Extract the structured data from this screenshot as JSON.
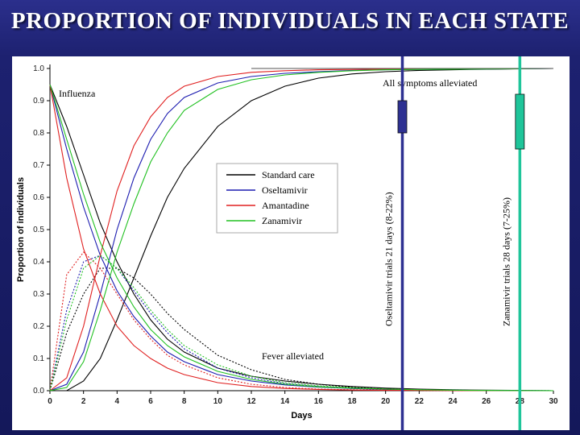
{
  "slide": {
    "title": "PROPORTION OF INDIVIDUALS IN EACH STATE"
  },
  "chart_data": {
    "type": "line",
    "xlabel": "Days",
    "ylabel": "Proportion of individuals",
    "xlim": [
      0,
      30
    ],
    "ylim": [
      0,
      1.0
    ],
    "x_ticks": [
      0,
      2,
      4,
      6,
      8,
      10,
      12,
      14,
      16,
      18,
      20,
      22,
      24,
      26,
      28,
      30
    ],
    "y_ticks": [
      0.0,
      0.1,
      0.2,
      0.3,
      0.4,
      0.5,
      0.6,
      0.7,
      0.8,
      0.9,
      1.0
    ],
    "grid": false,
    "legend_position": "center-right",
    "annotations": {
      "influenza": "Influenza",
      "all_symptoms": "All symptoms alleviated",
      "fever": "Fever alleviated",
      "oseltamivir_trial": "Oseltamivir trials 21 days (8-22%)",
      "zanamivir_trial": "Zanamivir trials 28 days (7-25%)"
    },
    "trial_markers": [
      {
        "name": "Oseltamivir trials",
        "x": 21,
        "box_y": [
          0.8,
          0.9
        ],
        "color": "#2e3192"
      },
      {
        "name": "Zanamivir trials",
        "x": 28,
        "box_y": [
          0.75,
          0.92
        ],
        "color": "#1fc59a"
      }
    ],
    "series": [
      {
        "name": "Standard care",
        "color": "#000000",
        "x": [
          0,
          1,
          2,
          3,
          4,
          5,
          6,
          7,
          8,
          10,
          12,
          14,
          16,
          18,
          20,
          22,
          25,
          30
        ],
        "all_alleviated": [
          0,
          0.0,
          0.03,
          0.1,
          0.22,
          0.35,
          0.48,
          0.6,
          0.69,
          0.82,
          0.9,
          0.945,
          0.97,
          0.983,
          0.99,
          0.994,
          0.997,
          1.0
        ],
        "fever_free_influenza": [
          0.95,
          0.82,
          0.67,
          0.52,
          0.4,
          0.3,
          0.22,
          0.16,
          0.12,
          0.07,
          0.045,
          0.03,
          0.02,
          0.013,
          0.008,
          0.005,
          0.002,
          0.0
        ],
        "fever_alleviated_only": [
          0,
          0.18,
          0.3,
          0.38,
          0.38,
          0.35,
          0.3,
          0.24,
          0.19,
          0.11,
          0.065,
          0.035,
          0.02,
          0.01,
          0.005,
          0.003,
          0.001,
          0.0
        ]
      },
      {
        "name": "Oseltamivir",
        "color": "#1c1cb0",
        "x": [
          0,
          1,
          2,
          3,
          4,
          5,
          6,
          7,
          8,
          10,
          12,
          14,
          16,
          18,
          20,
          22,
          25,
          30
        ],
        "all_alleviated": [
          0,
          0.02,
          0.12,
          0.3,
          0.5,
          0.66,
          0.78,
          0.86,
          0.91,
          0.955,
          0.975,
          0.985,
          0.99,
          0.994,
          0.996,
          0.997,
          0.998,
          1.0
        ],
        "fever_free_influenza": [
          0.95,
          0.75,
          0.57,
          0.42,
          0.31,
          0.23,
          0.17,
          0.12,
          0.09,
          0.05,
          0.03,
          0.018,
          0.011,
          0.007,
          0.004,
          0.003,
          0.001,
          0.0
        ],
        "fever_alleviated_only": [
          0,
          0.25,
          0.4,
          0.42,
          0.38,
          0.31,
          0.24,
          0.18,
          0.13,
          0.07,
          0.04,
          0.022,
          0.013,
          0.007,
          0.004,
          0.002,
          0.001,
          0.0
        ]
      },
      {
        "name": "Amantadine",
        "color": "#e02020",
        "x": [
          0,
          1,
          2,
          3,
          4,
          5,
          6,
          7,
          8,
          10,
          12,
          14,
          16,
          18,
          20,
          22,
          25,
          30
        ],
        "all_alleviated": [
          0,
          0.04,
          0.2,
          0.42,
          0.62,
          0.76,
          0.85,
          0.91,
          0.945,
          0.975,
          0.988,
          0.993,
          0.996,
          0.997,
          0.998,
          0.999,
          1.0,
          1.0
        ],
        "fever_free_influenza": [
          0.95,
          0.66,
          0.44,
          0.3,
          0.2,
          0.14,
          0.1,
          0.07,
          0.05,
          0.025,
          0.013,
          0.007,
          0.004,
          0.002,
          0.001,
          0.001,
          0.0,
          0.0
        ],
        "fever_alleviated_only": [
          0,
          0.36,
          0.43,
          0.38,
          0.3,
          0.22,
          0.16,
          0.11,
          0.08,
          0.04,
          0.02,
          0.01,
          0.005,
          0.003,
          0.002,
          0.001,
          0.0,
          0.0
        ]
      },
      {
        "name": "Zanamivir",
        "color": "#20c020",
        "x": [
          0,
          1,
          2,
          3,
          4,
          5,
          6,
          7,
          8,
          10,
          12,
          14,
          16,
          18,
          20,
          22,
          25,
          30
        ],
        "all_alleviated": [
          0,
          0.01,
          0.09,
          0.25,
          0.43,
          0.58,
          0.71,
          0.8,
          0.87,
          0.935,
          0.965,
          0.98,
          0.988,
          0.993,
          0.996,
          0.997,
          0.998,
          1.0
        ],
        "fever_free_influenza": [
          0.95,
          0.78,
          0.61,
          0.46,
          0.35,
          0.26,
          0.19,
          0.14,
          0.105,
          0.06,
          0.035,
          0.02,
          0.012,
          0.008,
          0.005,
          0.003,
          0.001,
          0.0
        ],
        "fever_alleviated_only": [
          0,
          0.22,
          0.38,
          0.42,
          0.38,
          0.32,
          0.25,
          0.19,
          0.14,
          0.08,
          0.045,
          0.025,
          0.015,
          0.009,
          0.005,
          0.003,
          0.001,
          0.0
        ]
      }
    ]
  }
}
